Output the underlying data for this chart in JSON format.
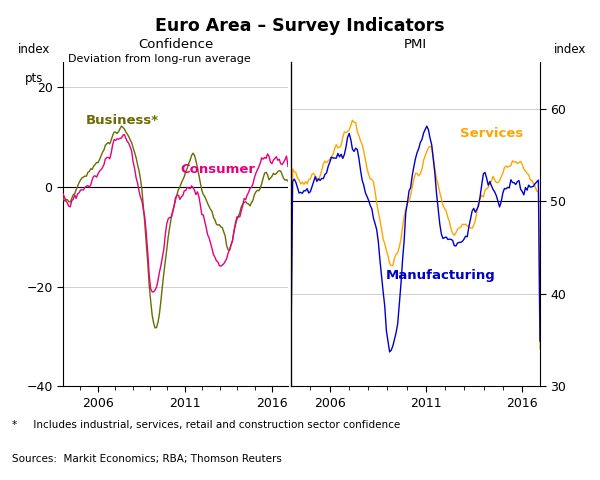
{
  "title": "Euro Area – Survey Indicators",
  "left_panel_title": "Confidence",
  "left_panel_subtitle": "Deviation from long-run average",
  "right_panel_title": "PMI",
  "left_ylabel_line1": "index",
  "left_ylabel_line2": "pts",
  "right_ylabel": "index",
  "left_ylim": [
    -40,
    25
  ],
  "right_ylim": [
    30,
    65
  ],
  "left_yticks": [
    -40,
    -20,
    0,
    20
  ],
  "right_yticks": [
    30,
    40,
    50,
    60
  ],
  "footnote": "*     Includes industrial, services, retail and construction sector confidence",
  "sources": "Sources:  Markit Economics; RBA; Thomson Reuters",
  "business_label": "Business*",
  "consumer_label": "Consumer",
  "services_label": "Services",
  "manufacturing_label": "Manufacturing",
  "business_color": "#6b6b00",
  "consumer_color": "#e6007e",
  "services_color": "#ffa500",
  "manufacturing_color": "#0000cc",
  "background_color": "#ffffff",
  "grid_color": "#c8c8c8",
  "xlim_start": 2004.0,
  "xlim_end": 2016.92
}
